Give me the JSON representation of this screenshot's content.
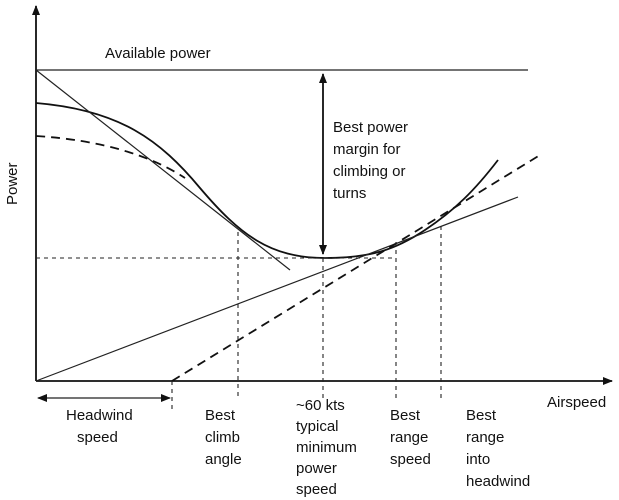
{
  "labels": {
    "available_power": "Available power",
    "power_axis": "Power",
    "airspeed_axis": "Airspeed",
    "margin": [
      "Best power",
      "margin for",
      "climbing or",
      "turns"
    ],
    "headwind": [
      "Headwind",
      "speed"
    ],
    "best_climb": [
      "Best",
      "climb",
      "angle"
    ],
    "min_power": [
      "~60 kts",
      "typical",
      "minimum",
      "power",
      "speed"
    ],
    "best_range": [
      "Best",
      "range",
      "speed"
    ],
    "best_range_headwind": [
      "Best",
      "range",
      "into",
      "headwind"
    ]
  }
}
